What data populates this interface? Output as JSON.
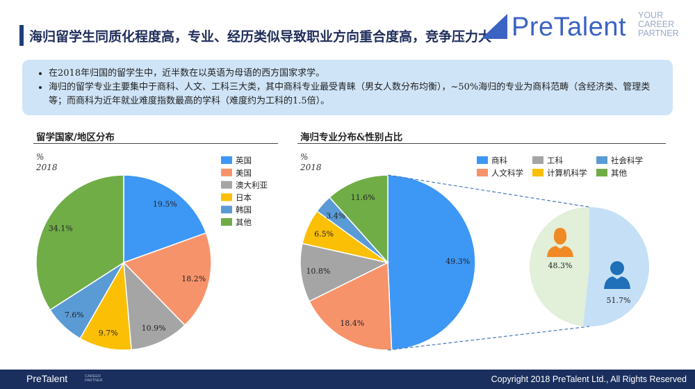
{
  "header": {
    "title": "海归留学生同质化程度高，专业、经历类似导致职业方向重合度高，竞争压力大",
    "logo_text": "PreTalent",
    "logo_tagline": [
      "YOUR",
      "CAREER",
      "PARTNER"
    ]
  },
  "bullets": [
    "在2018年归国的留学生中，近半数在以英语为母语的西方国家求学。",
    "海归的留学专业主要集中于商科、人文、工科三大类，其中商科专业最受青睐（男女人数分布均衡），~50%海归的专业为商科范畴（含经济类、管理类等；而商科为近年就业难度指数最高的学科（难度约为工科的1.5倍）。"
  ],
  "left_section": {
    "title": "留学国家/地区分布",
    "unit": "%",
    "year": "2018"
  },
  "right_section": {
    "title": "海归专业分布&性别占比",
    "unit": "%",
    "year": "2018"
  },
  "chart_data": [
    {
      "type": "pie",
      "title": "留学国家/地区分布",
      "series": [
        {
          "name": "英国",
          "value": 19.5,
          "label": "19.5%",
          "color": "#3d97f5"
        },
        {
          "name": "美国",
          "value": 18.2,
          "label": "18.2%",
          "color": "#f7936b"
        },
        {
          "name": "澳大利亚",
          "value": 10.9,
          "label": "10.9%",
          "color": "#a5a5a5"
        },
        {
          "name": "日本",
          "value": 9.7,
          "label": "9.7%",
          "color": "#fbbf05"
        },
        {
          "name": "韩国",
          "value": 7.6,
          "label": "7.6%",
          "color": "#5b9bd5"
        },
        {
          "name": "其他",
          "value": 34.1,
          "label": "34.1%",
          "color": "#70ad47"
        }
      ],
      "legend_position": "top-right"
    },
    {
      "type": "pie",
      "title": "海归专业分布&性别占比",
      "series": [
        {
          "name": "商科",
          "value": 49.3,
          "label": "49.3%",
          "color": "#3d97f5"
        },
        {
          "name": "人文科学",
          "value": 18.4,
          "label": "18.4%",
          "color": "#f7936b"
        },
        {
          "name": "工科",
          "value": 10.8,
          "label": "10.8%",
          "color": "#a5a5a5"
        },
        {
          "name": "计算机科学",
          "value": 6.5,
          "label": "6.5%",
          "color": "#fbbf05"
        },
        {
          "name": "社会科学",
          "value": 3.4,
          "label": "3.4%",
          "color": "#5b9bd5"
        },
        {
          "name": "其他",
          "value": 11.6,
          "label": "11.6%",
          "color": "#70ad47"
        }
      ],
      "legend_order": [
        "商科",
        "工科",
        "社会科学",
        "人文科学",
        "计算机科学",
        "其他"
      ],
      "legend_position": "top"
    },
    {
      "type": "pie",
      "title": "",
      "series": [
        {
          "name": "female",
          "value": 48.3,
          "label": "48.3%",
          "color": "#e2efd9",
          "icon": "female-person-icon"
        },
        {
          "name": "male",
          "value": 51.7,
          "label": "51.7%",
          "color": "#c5e0f6",
          "icon": "male-person-icon"
        }
      ]
    }
  ],
  "icon_colors": {
    "female": "#f08a24",
    "male": "#1f6fb9"
  },
  "footer": {
    "logo_text": "PreTalent",
    "logo_tagline": [
      "CAREER",
      "PARTNER"
    ],
    "copyright": "Copyright 2018 PreTalent Ltd., All Rights Reserved"
  }
}
